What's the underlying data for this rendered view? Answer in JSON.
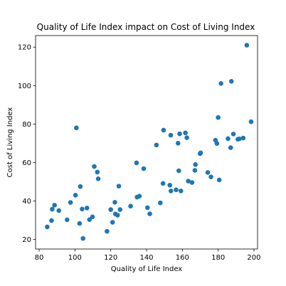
{
  "chart_data": {
    "type": "scatter",
    "title": "Quality of Life Index impact on Cost of Living Index",
    "xlabel": "Quality of Life Index",
    "ylabel": "Cost of Living Index",
    "xlim": [
      78,
      202
    ],
    "ylim": [
      15,
      126
    ],
    "xticks": [
      80,
      100,
      120,
      140,
      160,
      180,
      200
    ],
    "yticks": [
      20,
      40,
      60,
      80,
      100,
      120
    ],
    "grid": false,
    "marker_color": "#1f77b4",
    "points": [
      [
        84.5,
        26.5
      ],
      [
        86.9,
        29.8
      ],
      [
        87.3,
        35.7
      ],
      [
        88.6,
        37.8
      ],
      [
        91.0,
        35.0
      ],
      [
        95.6,
        30.2
      ],
      [
        97.5,
        39.2
      ],
      [
        100.3,
        43.0
      ],
      [
        100.8,
        78.0
      ],
      [
        102.6,
        28.3
      ],
      [
        103.0,
        47.5
      ],
      [
        104.5,
        20.5
      ],
      [
        104.0,
        35.8
      ],
      [
        106.7,
        36.3
      ],
      [
        108.1,
        30.3
      ],
      [
        109.8,
        31.7
      ],
      [
        110.8,
        57.9
      ],
      [
        112.5,
        55.0
      ],
      [
        113.0,
        51.5
      ],
      [
        117.9,
        24.2
      ],
      [
        120.0,
        35.5
      ],
      [
        121.0,
        28.9
      ],
      [
        122.3,
        39.3
      ],
      [
        122.6,
        33.2
      ],
      [
        123.8,
        32.6
      ],
      [
        124.5,
        47.7
      ],
      [
        125.2,
        35.5
      ],
      [
        131.1,
        37.3
      ],
      [
        134.4,
        59.8
      ],
      [
        134.7,
        42.0
      ],
      [
        136.0,
        42.5
      ],
      [
        138.4,
        56.8
      ],
      [
        140.5,
        36.5
      ],
      [
        141.8,
        33.3
      ],
      [
        145.5,
        69.1
      ],
      [
        147.7,
        39.0
      ],
      [
        149.2,
        49.1
      ],
      [
        149.5,
        76.8
      ],
      [
        153.0,
        48.2
      ],
      [
        153.6,
        45.2
      ],
      [
        153.5,
        74.2
      ],
      [
        156.5,
        45.8
      ],
      [
        157.6,
        70.0
      ],
      [
        158.0,
        55.7
      ],
      [
        158.5,
        74.9
      ],
      [
        159.2,
        45.2
      ],
      [
        161.7,
        75.4
      ],
      [
        162.5,
        72.9
      ],
      [
        163.3,
        50.3
      ],
      [
        165.4,
        49.6
      ],
      [
        167.0,
        55.9
      ],
      [
        167.3,
        58.9
      ],
      [
        169.9,
        64.6
      ],
      [
        170.2,
        65.0
      ],
      [
        174.2,
        54.8
      ],
      [
        176.0,
        52.5
      ],
      [
        178.5,
        71.6
      ],
      [
        179.3,
        69.9
      ],
      [
        180.0,
        83.4
      ],
      [
        180.6,
        50.9
      ],
      [
        181.6,
        101.1
      ],
      [
        185.5,
        72.4
      ],
      [
        187.0,
        67.7
      ],
      [
        187.4,
        102.2
      ],
      [
        188.5,
        74.8
      ],
      [
        191.0,
        72.1
      ],
      [
        191.8,
        72.3
      ],
      [
        194.0,
        72.7
      ],
      [
        196.0,
        121.0
      ],
      [
        198.4,
        81.2
      ]
    ]
  }
}
